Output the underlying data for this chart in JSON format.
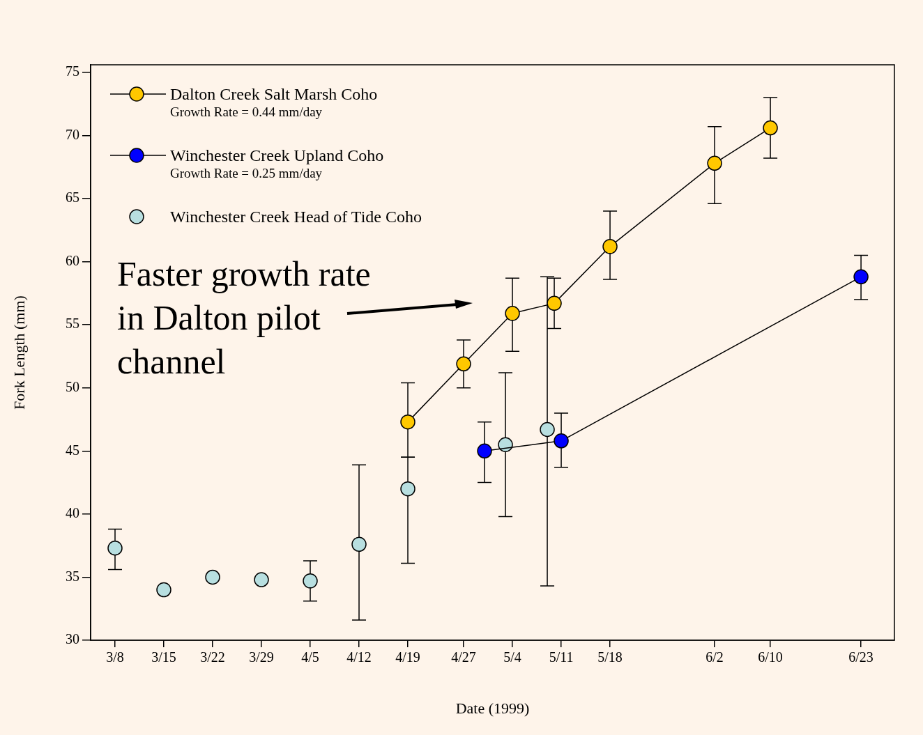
{
  "chart_data": {
    "type": "scatter",
    "xlabel": "Date (1999)",
    "ylabel": "Fork Length (mm)",
    "xlim": [
      "1999-03-04T12:00",
      "1999-06-27T19:00"
    ],
    "ylim": [
      30,
      75.6
    ],
    "xticks": [
      {
        "value": "1999-03-08",
        "label": "3/8"
      },
      {
        "value": "1999-03-15",
        "label": "3/15"
      },
      {
        "value": "1999-03-22",
        "label": "3/22"
      },
      {
        "value": "1999-03-29",
        "label": "3/29"
      },
      {
        "value": "1999-04-05",
        "label": "4/5"
      },
      {
        "value": "1999-04-12",
        "label": "4/12"
      },
      {
        "value": "1999-04-19",
        "label": "4/19"
      },
      {
        "value": "1999-04-27",
        "label": "4/27"
      },
      {
        "value": "1999-05-04",
        "label": "5/4"
      },
      {
        "value": "1999-05-11",
        "label": "5/11"
      },
      {
        "value": "1999-05-18",
        "label": "5/18"
      },
      {
        "value": "1999-06-02",
        "label": "6/2"
      },
      {
        "value": "1999-06-10",
        "label": "6/10"
      },
      {
        "value": "1999-06-23",
        "label": "6/23"
      }
    ],
    "yticks": [
      30,
      35,
      40,
      45,
      50,
      55,
      60,
      65,
      70,
      75
    ],
    "grid": false,
    "legend": "top left",
    "marker": "circle",
    "line_style": "solid",
    "series": [
      {
        "name": "Dalton Creek Salt Marsh Coho",
        "type": "line",
        "color": "#ffc800",
        "x": [
          "1999-04-19",
          "1999-04-27",
          "1999-05-04",
          "1999-05-10",
          "1999-05-18",
          "1999-06-02",
          "1999-06-10"
        ],
        "values": [
          47.3,
          51.9,
          55.9,
          56.7,
          61.2,
          67.8,
          70.6
        ],
        "errors": [
          [
            44.5,
            50.4
          ],
          [
            50.0,
            53.8
          ],
          [
            52.9,
            58.7
          ],
          [
            54.7,
            58.7
          ],
          [
            58.6,
            64.0
          ],
          [
            64.6,
            70.7
          ],
          [
            68.2,
            73.0
          ]
        ]
      },
      {
        "name": "Winchester Creek Upland Coho",
        "type": "line",
        "color": "#0000ff",
        "x": [
          "1999-04-30",
          "1999-05-11",
          "1999-06-23"
        ],
        "values": [
          45.0,
          45.8,
          58.8
        ],
        "errors": [
          [
            42.5,
            47.3
          ],
          [
            43.7,
            48.0
          ],
          [
            57.0,
            60.5
          ]
        ]
      },
      {
        "name": "Winchester Creek Head of Tide Coho",
        "type": "scatter",
        "color": "#b8dfe0",
        "x": [
          "1999-03-08",
          "1999-03-15",
          "1999-03-22",
          "1999-03-29",
          "1999-04-05",
          "1999-04-12",
          "1999-04-19",
          "1999-05-03",
          "1999-05-09"
        ],
        "values": [
          37.3,
          34.0,
          35.0,
          34.8,
          34.7,
          37.6,
          42.0,
          45.5,
          46.7
        ],
        "errors": [
          [
            35.6,
            38.8
          ],
          null,
          null,
          null,
          [
            33.1,
            36.3
          ],
          [
            31.6,
            43.9
          ],
          [
            36.1,
            44.5
          ],
          [
            39.8,
            51.2
          ],
          [
            34.3,
            58.8
          ]
        ]
      }
    ],
    "annotations": [
      "Growth Rate = 0.44 mm/day",
      "Growth Rate = 0.25 mm/day",
      "Faster growth rate\nin Dalton pilot\nchannel"
    ]
  }
}
